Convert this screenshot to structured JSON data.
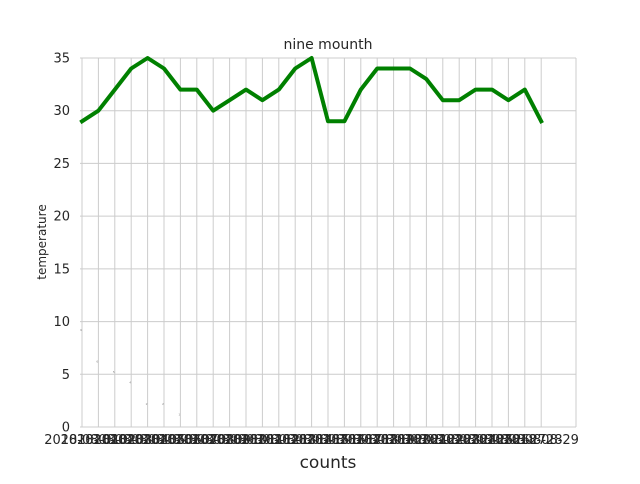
{
  "chart_data": {
    "type": "line",
    "title": "nine mounth",
    "xlabel": "counts",
    "ylabel": "temperature",
    "ylim": [
      0,
      35
    ],
    "yticks": [
      0,
      5,
      10,
      15,
      20,
      25,
      30,
      35
    ],
    "xticks": [
      "2018-08-01",
      "2018-08-02",
      "2018-08-03",
      "2018-08-04",
      "2018-08-05",
      "2018-08-06",
      "2018-08-07",
      "2018-08-08",
      "2018-08-09",
      "2018-08-10",
      "2018-08-11",
      "2018-08-12",
      "2018-08-13",
      "2018-08-14",
      "2018-08-15",
      "2018-08-16",
      "2018-08-17",
      "2018-08-18",
      "2018-08-19",
      "2018-08-20",
      "2018-08-21",
      "2018-08-22",
      "2018-08-23",
      "2018-08-24",
      "2018-08-25",
      "2018-08-26",
      "2018-08-27",
      "2018-08-28",
      "2018-08-29"
    ],
    "grid": true,
    "series": [
      {
        "color": "#008000",
        "values": [
          29,
          30,
          32,
          34,
          35,
          34,
          32,
          32,
          30,
          31,
          32,
          31,
          32,
          34,
          35,
          29,
          29,
          32,
          34,
          34,
          34,
          33,
          31,
          31,
          32,
          32,
          31,
          32,
          29
        ]
      }
    ],
    "annotations": [
      {
        "x": 0,
        "y": 9.2,
        "text": "9"
      },
      {
        "x": 1,
        "y": 6.2,
        "text": "6"
      },
      {
        "x": 2,
        "y": 5.2,
        "text": "5"
      },
      {
        "x": 3,
        "y": 4.2,
        "text": "4"
      },
      {
        "x": 4,
        "y": 2.2,
        "text": "2"
      },
      {
        "x": 5,
        "y": 2.2,
        "text": "2"
      },
      {
        "x": 6,
        "y": 1.2,
        "text": "1"
      }
    ]
  }
}
